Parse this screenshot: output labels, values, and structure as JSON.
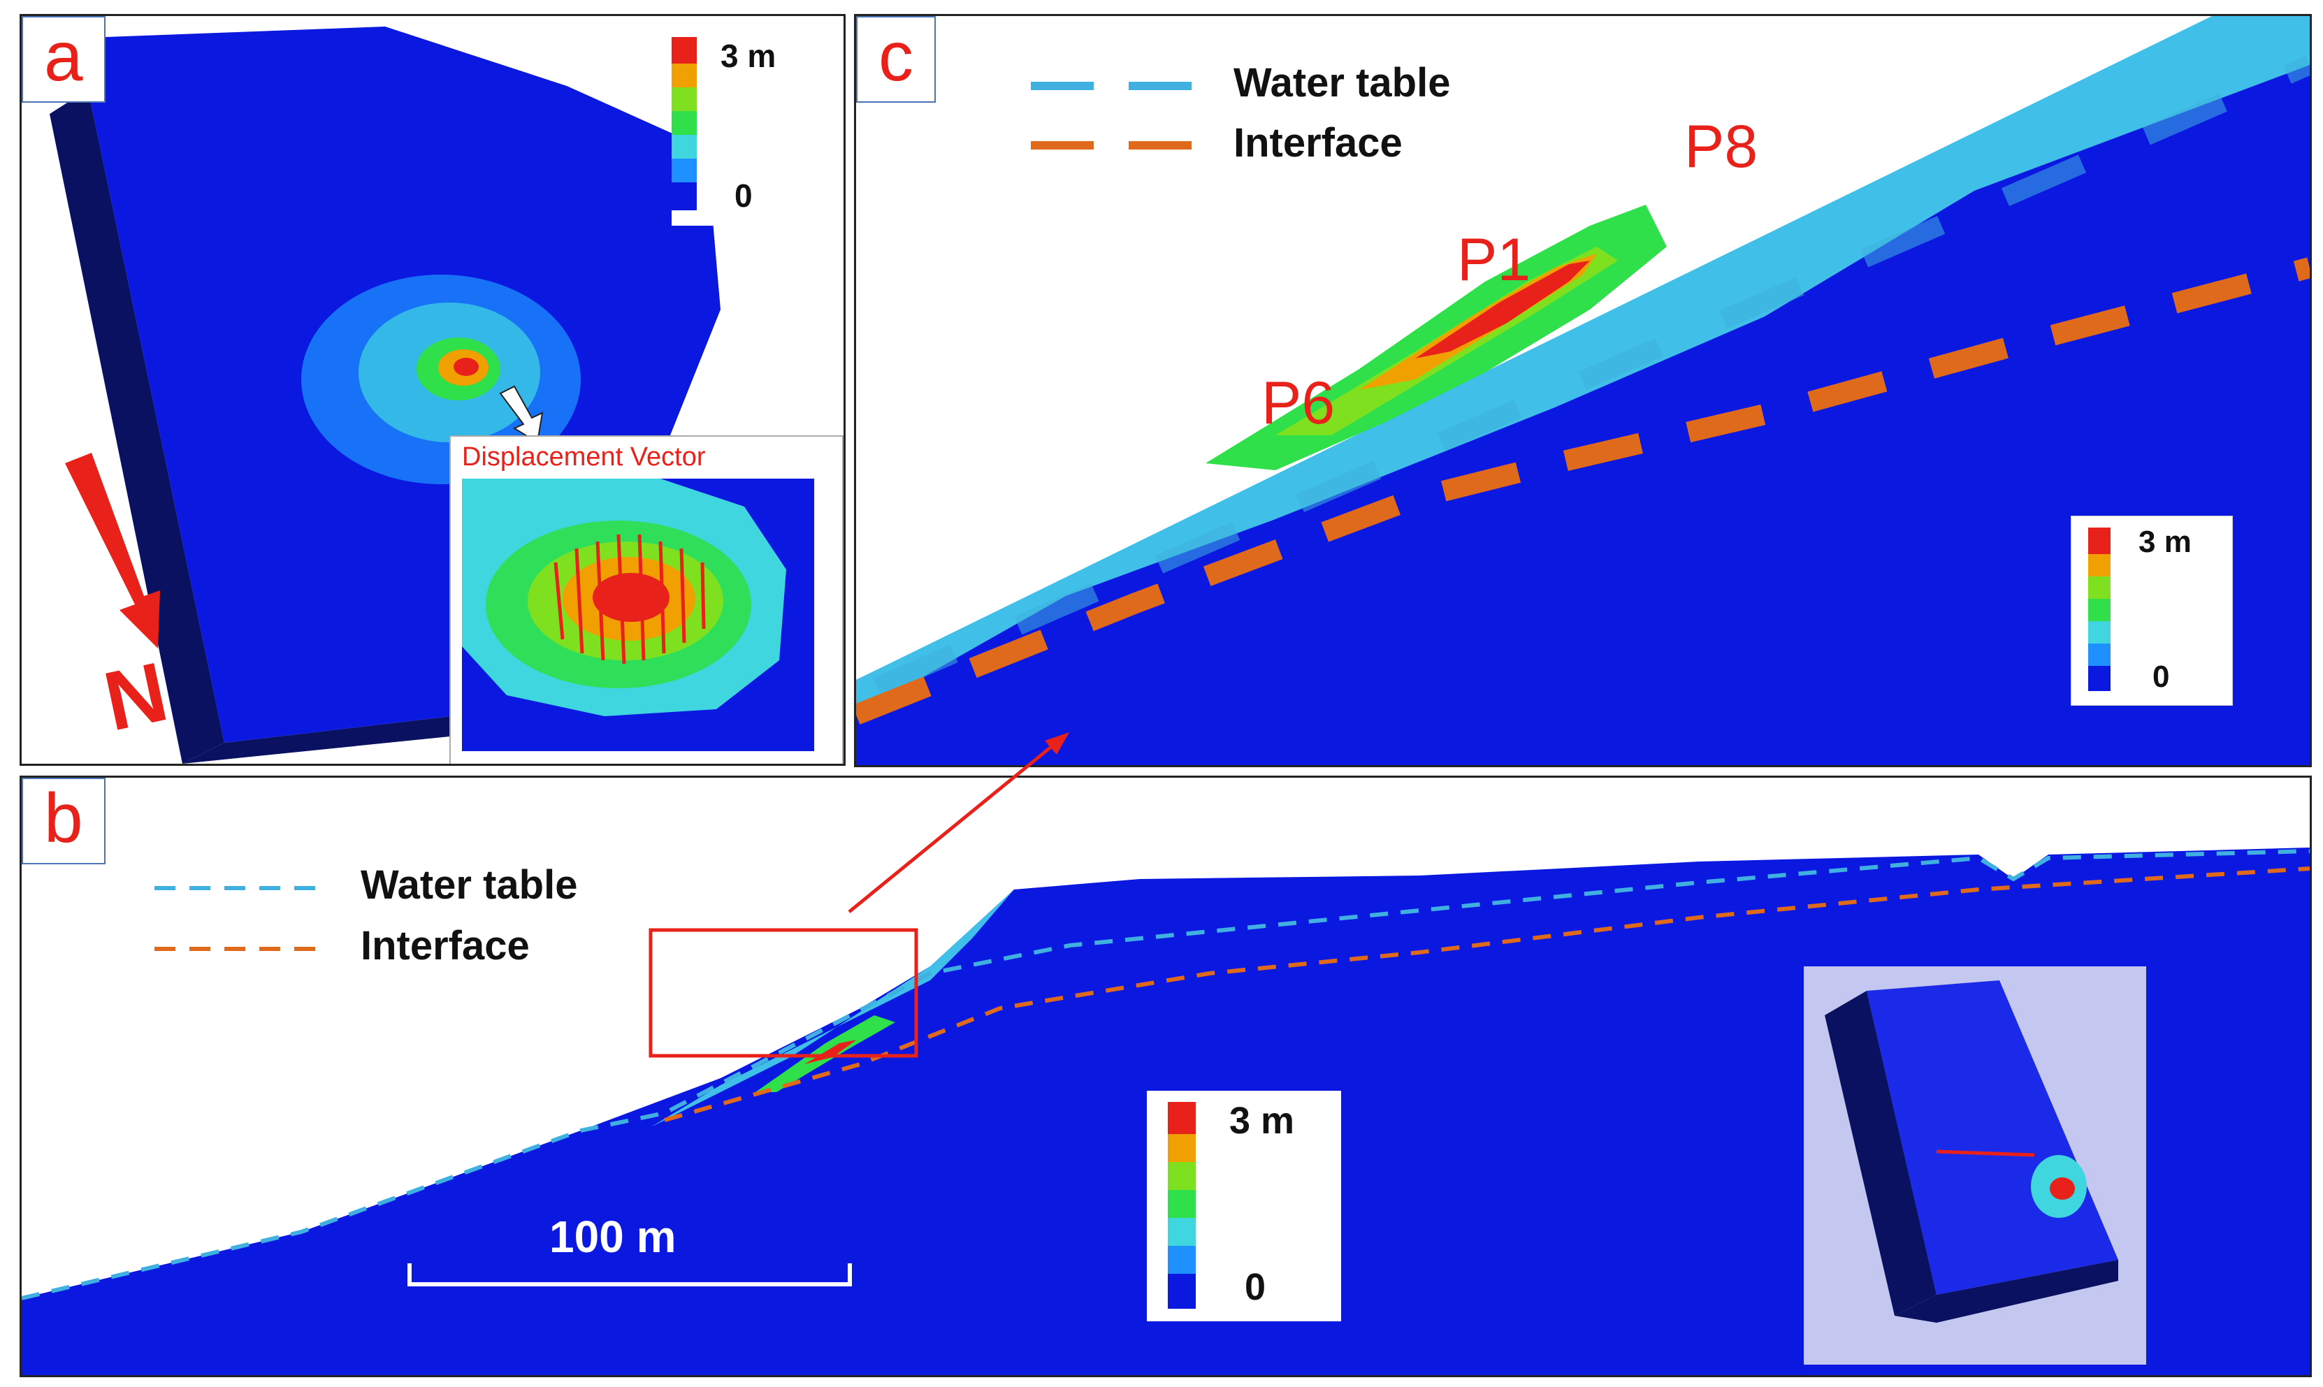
{
  "figure": {
    "panel_a": {
      "label": "a",
      "colorbar": {
        "max_label": "3 m",
        "min_label": "0"
      },
      "inset_title": "Displacement Vector",
      "north_label": "N"
    },
    "panel_b": {
      "label": "b",
      "legend": {
        "water_table": "Water table",
        "interface": "Interface"
      },
      "colorbar": {
        "max_label": "3 m",
        "min_label": "0"
      },
      "scale_bar": "100 m"
    },
    "panel_c": {
      "label": "c",
      "legend": {
        "water_table": "Water table",
        "interface": "Interface"
      },
      "points": {
        "p1": "P1",
        "p6": "P6",
        "p8": "P8"
      },
      "colorbar": {
        "max_label": "3 m",
        "min_label": "0"
      }
    }
  },
  "colors": {
    "ground_blue": "#0a18e0",
    "dark_side": "#0a1160",
    "water_table_line": "#3fb0e0",
    "interface_line": "#e06a1c",
    "displaced_zone": "#40c0e8",
    "accent_red": "#e8221b",
    "colormap": [
      "#0a18e0",
      "#1e90ff",
      "#3fd6e0",
      "#2fe04a",
      "#7fe020",
      "#f0a000",
      "#e8221b"
    ]
  }
}
